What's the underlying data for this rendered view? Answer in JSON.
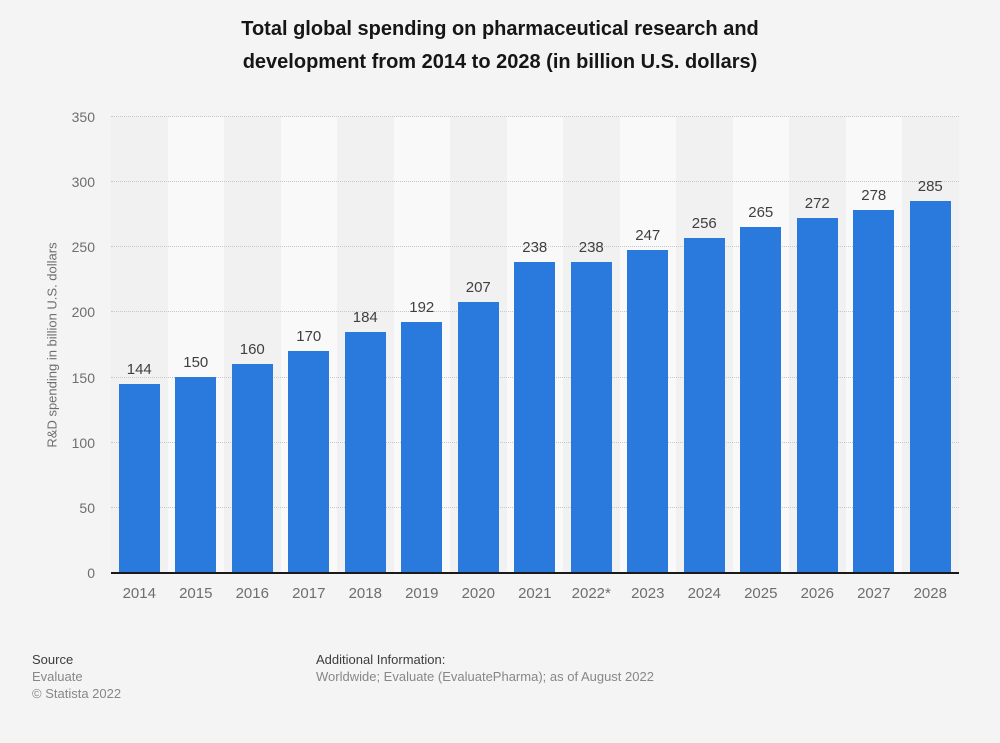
{
  "title": "Total global spending on pharmaceutical research and development from 2014 to 2028 (in billion U.S. dollars)",
  "chart_data": {
    "type": "bar",
    "categories": [
      "2014",
      "2015",
      "2016",
      "2017",
      "2018",
      "2019",
      "2020",
      "2021",
      "2022*",
      "2023",
      "2024",
      "2025",
      "2026",
      "2027",
      "2028"
    ],
    "values": [
      144,
      150,
      160,
      170,
      184,
      192,
      207,
      238,
      238,
      247,
      256,
      265,
      272,
      278,
      285
    ],
    "title": "Total global spending on pharmaceutical research and development from 2014 to 2028 (in billion U.S. dollars)",
    "xlabel": "",
    "ylabel": "R&D spending in billion U.S. dollars",
    "ylim": [
      0,
      350
    ],
    "ytick_step": 50,
    "grid": "horizontal-dotted",
    "legend": "none",
    "bar_color": "#2a79dc",
    "band_color_even": "#f1f1f1",
    "band_color_odd": "#f9f9f9",
    "axis_line_color": "#1a1a1a",
    "gridline_color": "#c7c7c7"
  },
  "footer": {
    "source_label": "Source",
    "source_value": "Evaluate",
    "copyright": "© Statista 2022",
    "additional_label": "Additional Information:",
    "additional_value": "Worldwide; Evaluate (EvaluatePharma); as of August 2022"
  }
}
